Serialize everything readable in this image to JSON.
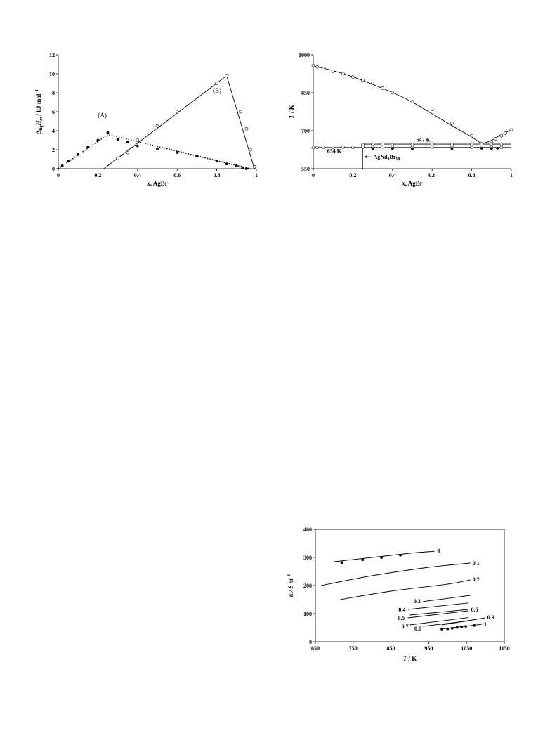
{
  "chart_data": [
    {
      "id": "enthalpy",
      "type": "scatter",
      "xlabel_italic": "x",
      "xlabel_rest": ", AgBr",
      "ylabel_prefix": "Δ",
      "ylabel_sub": "liq",
      "ylabel_var": "H",
      "ylabel_var_sub": "m",
      "ylabel_unit": " / kJ mol",
      "ylabel_sup": "−1",
      "xlim": [
        0,
        1
      ],
      "ylim": [
        0,
        12
      ],
      "xticks": [
        "0",
        "0.2",
        "0.4",
        "0.6",
        "0.8",
        "1"
      ],
      "yticks": [
        "0",
        "2",
        "4",
        "6",
        "8",
        "10",
        "12"
      ],
      "annotations": [
        {
          "text": "(A)",
          "x": 0.2,
          "y": 5.4
        },
        {
          "text": "(B)",
          "x": 0.78,
          "y": 8.0
        }
      ],
      "series": [
        {
          "marker": "filled-circle",
          "line": "dotted",
          "points": [
            [
              0.02,
              0.3
            ],
            [
              0.05,
              0.8
            ],
            [
              0.1,
              1.5
            ],
            [
              0.15,
              2.3
            ],
            [
              0.2,
              3.0
            ],
            [
              0.25,
              3.8
            ],
            [
              0.3,
              3.1
            ],
            [
              0.35,
              2.8
            ],
            [
              0.4,
              2.4
            ],
            [
              0.5,
              2.1
            ],
            [
              0.6,
              1.7
            ],
            [
              0.7,
              1.3
            ],
            [
              0.8,
              0.8
            ],
            [
              0.85,
              0.5
            ],
            [
              0.9,
              0.3
            ],
            [
              0.93,
              0.1
            ],
            [
              0.95,
              0.0
            ]
          ],
          "fit": [
            [
              0,
              0
            ],
            [
              0.25,
              3.6
            ],
            [
              0.97,
              0
            ]
          ]
        },
        {
          "marker": "open-circle",
          "line": "solid",
          "points": [
            [
              0.3,
              1.1
            ],
            [
              0.35,
              1.7
            ],
            [
              0.4,
              3.0
            ],
            [
              0.5,
              4.5
            ],
            [
              0.6,
              6.0
            ],
            [
              0.8,
              9.0
            ],
            [
              0.85,
              9.8
            ],
            [
              0.92,
              6.0
            ],
            [
              0.95,
              4.2
            ],
            [
              0.97,
              2.0
            ],
            [
              0.99,
              0.2
            ]
          ],
          "fit": [
            [
              0.23,
              0
            ],
            [
              0.85,
              9.8
            ],
            [
              0.99,
              0
            ]
          ]
        }
      ]
    },
    {
      "id": "phase",
      "type": "scatter",
      "xlabel_italic": "x",
      "xlabel_rest": ", AgBr",
      "ylabel_italic": "T",
      "ylabel_rest": " / K",
      "xlim": [
        0,
        1
      ],
      "ylim": [
        550,
        1000
      ],
      "xticks": [
        "0",
        "0.2",
        "0.4",
        "0.6",
        "0.8",
        "1"
      ],
      "yticks": [
        "550",
        "700",
        "850",
        "1000"
      ],
      "annotations": [
        {
          "text": "647 K",
          "x": 0.52,
          "y": 657
        },
        {
          "text": "634 K",
          "x": 0.07,
          "y": 612
        }
      ],
      "compound": {
        "base": "AgNd",
        "sub1": "3",
        "mid": "Br",
        "sub2": "10",
        "x": 0.25
      },
      "series": [
        {
          "marker": "open-circle",
          "points": [
            [
              0.0,
              958
            ],
            [
              0.02,
              952
            ],
            [
              0.05,
              945
            ],
            [
              0.1,
              935
            ],
            [
              0.15,
              925
            ],
            [
              0.2,
              912
            ],
            [
              0.25,
              900
            ],
            [
              0.3,
              888
            ],
            [
              0.35,
              868
            ],
            [
              0.4,
              850
            ],
            [
              0.5,
              815
            ],
            [
              0.6,
              785
            ],
            [
              0.7,
              730
            ],
            [
              0.8,
              680
            ],
            [
              0.85,
              650
            ],
            [
              0.9,
              655
            ],
            [
              0.92,
              668
            ],
            [
              0.95,
              680
            ],
            [
              0.97,
              690
            ],
            [
              1.0,
              703
            ]
          ]
        },
        {
          "marker": "open-circle",
          "points": [
            [
              0.25,
              645
            ],
            [
              0.3,
              647
            ],
            [
              0.35,
              646
            ],
            [
              0.4,
              645
            ],
            [
              0.5,
              646
            ],
            [
              0.6,
              647
            ],
            [
              0.7,
              646
            ],
            [
              0.8,
              647
            ],
            [
              0.85,
              646
            ],
            [
              0.9,
              648
            ],
            [
              0.95,
              647
            ]
          ]
        },
        {
          "marker": "open-circle",
          "points": [
            [
              0.0,
              634
            ],
            [
              0.02,
              634
            ],
            [
              0.05,
              634
            ],
            [
              0.1,
              634
            ],
            [
              0.15,
              635
            ],
            [
              0.2,
              634
            ],
            [
              0.25,
              635
            ],
            [
              0.3,
              634
            ],
            [
              0.35,
              636
            ],
            [
              0.4,
              634
            ],
            [
              0.5,
              634
            ],
            [
              0.6,
              634
            ],
            [
              0.7,
              634
            ],
            [
              0.8,
              634
            ],
            [
              0.85,
              634
            ],
            [
              0.9,
              634
            ],
            [
              0.95,
              634
            ]
          ]
        },
        {
          "marker": "filled-circle",
          "points": [
            [
              0.3,
              630
            ],
            [
              0.4,
              630
            ],
            [
              0.5,
              629
            ],
            [
              0.7,
              630
            ],
            [
              0.85,
              631
            ],
            [
              0.9,
              630
            ],
            [
              0.93,
              631
            ]
          ]
        }
      ],
      "curves": [
        [
          [
            0.0,
            957
          ],
          [
            0.1,
            937
          ],
          [
            0.2,
            913
          ],
          [
            0.3,
            883
          ],
          [
            0.4,
            851
          ],
          [
            0.5,
            813
          ],
          [
            0.6,
            767
          ],
          [
            0.7,
            720
          ],
          [
            0.8,
            675
          ],
          [
            0.85,
            648
          ]
        ],
        [
          [
            0.85,
            648
          ],
          [
            0.9,
            662
          ],
          [
            0.95,
            685
          ],
          [
            1.0,
            703
          ]
        ],
        [
          [
            0.25,
            647
          ],
          [
            1.0,
            647
          ]
        ],
        [
          [
            0.0,
            634
          ],
          [
            1.0,
            634
          ]
        ],
        [
          [
            0.25,
            634
          ],
          [
            0.25,
            550
          ]
        ]
      ]
    },
    {
      "id": "conductivity",
      "type": "line",
      "xlabel_italic": "T",
      "xlabel_rest": " / K",
      "ylabel_italic": "κ / S m",
      "ylabel_sup": "−1",
      "xlim": [
        650,
        1150
      ],
      "ylim": [
        0,
        400
      ],
      "xticks": [
        "650",
        "750",
        "850",
        "950",
        "1050",
        "1150"
      ],
      "yticks": [
        "0",
        "100",
        "200",
        "300",
        "400"
      ],
      "series": [
        {
          "name": "0",
          "line": [
            [
              700,
              285
            ],
            [
              800,
              300
            ],
            [
              900,
              315
            ],
            [
              965,
              322
            ]
          ],
          "label_at": [
            972,
            325
          ]
        },
        {
          "name": "0.1",
          "line": [
            [
              665,
              200
            ],
            [
              800,
              235
            ],
            [
              950,
              265
            ],
            [
              1060,
              280
            ]
          ],
          "label_at": [
            1066,
            280
          ]
        },
        {
          "name": "0.2",
          "line": [
            [
              715,
              150
            ],
            [
              850,
              180
            ],
            [
              1000,
              205
            ],
            [
              1060,
              220
            ]
          ],
          "label_at": [
            1066,
            222
          ]
        },
        {
          "name": "0.3",
          "line": [
            [
              935,
              143
            ],
            [
              1060,
              165
            ]
          ],
          "label_at": [
            910,
            145
          ]
        },
        {
          "name": "0.4",
          "line": [
            [
              895,
              115
            ],
            [
              1055,
              138
            ]
          ],
          "label_at": [
            870,
            115
          ]
        },
        {
          "name": "0.5",
          "line": [
            [
              895,
              85
            ],
            [
              1055,
              110
            ]
          ],
          "label_at": [
            868,
            85
          ]
        },
        {
          "name": "0.6",
          "line": [
            [
              900,
              95
            ],
            [
              1055,
              115
            ]
          ],
          "label_at": [
            1062,
            115
          ]
        },
        {
          "name": "0.7",
          "line": [
            [
              900,
              60
            ],
            [
              1055,
              86
            ]
          ],
          "label_at": [
            878,
            55
          ]
        },
        {
          "name": "0.8",
          "line": [
            [
              935,
              55
            ],
            [
              1060,
              75
            ]
          ],
          "label_at": [
            912,
            48
          ]
        },
        {
          "name": "0.9",
          "line": [
            [
              985,
              60
            ],
            [
              1100,
              85
            ]
          ],
          "label_at": [
            1105,
            88
          ]
        },
        {
          "name": "1",
          "line": [
            [
              980,
              45
            ],
            [
              1090,
              62
            ]
          ],
          "label_at": [
            1096,
            63
          ]
        }
      ],
      "points": [
        {
          "marker": "filled-circle",
          "data": [
            [
              720,
              282
            ],
            [
              775,
              292
            ],
            [
              825,
              300
            ],
            [
              875,
              308
            ]
          ]
        },
        {
          "marker": "filled-circle",
          "data": [
            [
              985,
              45
            ],
            [
              1000,
              46
            ],
            [
              1012,
              48
            ],
            [
              1025,
              51
            ],
            [
              1037,
              53
            ],
            [
              1048,
              55
            ],
            [
              1070,
              58
            ]
          ]
        }
      ]
    }
  ]
}
